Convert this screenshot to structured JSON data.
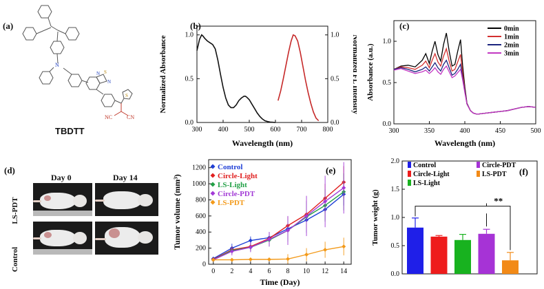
{
  "panels": {
    "a": {
      "label": "(a)",
      "compound": "TBDTT"
    },
    "b": {
      "label": "(b)"
    },
    "c": {
      "label": "(c)"
    },
    "d": {
      "label": "(d)",
      "day0": "Day 0",
      "day14": "Day 14",
      "row1": "LS-PDT",
      "row2": "Control"
    },
    "e": {
      "label": "(e)"
    },
    "f": {
      "label": "(f)",
      "significance": "**"
    }
  },
  "structure": {
    "atoms": [
      "N",
      "N",
      "S",
      "N",
      "S",
      "NC",
      "CN"
    ],
    "accent": "#c0392b"
  },
  "chart_data": [
    {
      "id": "b",
      "type": "line",
      "xlabel": "Wavelength (nm)",
      "ylabel": "Normalized Absorbance",
      "ylabel_right": "Normalized FL Intensity",
      "xlim": [
        300,
        800
      ],
      "ylim": [
        0,
        1.1
      ],
      "xticks": [
        "300",
        "400",
        "500",
        "600",
        "700",
        "800"
      ],
      "yticks": [
        "0.0",
        "0.5",
        "1.0"
      ],
      "yticks_right": [
        "0.0",
        "0.5",
        "1.0"
      ],
      "series": [
        {
          "color": "#111111",
          "x": [
            300,
            310,
            318,
            322,
            330,
            340,
            350,
            360,
            370,
            380,
            390,
            400,
            410,
            420,
            430,
            440,
            450,
            460,
            470,
            480,
            485,
            490,
            500,
            510,
            520,
            530,
            540,
            550,
            560,
            570,
            580,
            590,
            600
          ],
          "y": [
            0.82,
            0.95,
            1.0,
            0.99,
            0.96,
            0.93,
            0.91,
            0.89,
            0.84,
            0.71,
            0.55,
            0.4,
            0.28,
            0.2,
            0.17,
            0.17,
            0.2,
            0.25,
            0.28,
            0.3,
            0.3,
            0.29,
            0.26,
            0.21,
            0.16,
            0.11,
            0.07,
            0.04,
            0.02,
            0.01,
            0.005,
            0.002,
            0.0
          ]
        },
        {
          "color": "#c62828",
          "x": [
            610,
            620,
            630,
            640,
            650,
            660,
            668,
            675,
            685,
            695,
            705,
            715,
            725,
            735,
            745,
            755,
            765
          ],
          "y": [
            0.25,
            0.36,
            0.5,
            0.65,
            0.8,
            0.93,
            1.0,
            0.99,
            0.93,
            0.8,
            0.64,
            0.48,
            0.34,
            0.22,
            0.12,
            0.05,
            0.02
          ]
        }
      ]
    },
    {
      "id": "c",
      "type": "line",
      "xlabel": "Wavelength (nm)",
      "ylabel": "Absorbance (a.u.)",
      "xlim": [
        300,
        500
      ],
      "ylim": [
        0,
        1.25
      ],
      "xticks": [
        "300",
        "350",
        "400",
        "450",
        "500"
      ],
      "yticks": [
        "0.0",
        "0.5",
        "1.0"
      ],
      "x": [
        300,
        310,
        320,
        330,
        340,
        345,
        350,
        354,
        358,
        362,
        366,
        370,
        374,
        378,
        382,
        386,
        390,
        394,
        397,
        400,
        403,
        408,
        412,
        416,
        420,
        430,
        440,
        450,
        460,
        470,
        480,
        490,
        500
      ],
      "series": [
        {
          "name": "0min",
          "color": "#000000",
          "y": [
            0.66,
            0.7,
            0.71,
            0.69,
            0.77,
            0.85,
            0.73,
            0.88,
            1.0,
            0.84,
            0.76,
            0.96,
            1.1,
            0.88,
            0.7,
            0.72,
            0.88,
            1.02,
            0.7,
            0.45,
            0.25,
            0.16,
            0.13,
            0.12,
            0.12,
            0.13,
            0.14,
            0.15,
            0.16,
            0.18,
            0.2,
            0.21,
            0.2
          ]
        },
        {
          "name": "1min",
          "color": "#d32f2f",
          "y": [
            0.66,
            0.69,
            0.68,
            0.66,
            0.71,
            0.76,
            0.68,
            0.77,
            0.85,
            0.75,
            0.7,
            0.82,
            0.91,
            0.76,
            0.64,
            0.66,
            0.75,
            0.84,
            0.62,
            0.42,
            0.24,
            0.16,
            0.13,
            0.12,
            0.12,
            0.13,
            0.14,
            0.15,
            0.16,
            0.18,
            0.2,
            0.21,
            0.2
          ]
        },
        {
          "name": "2min",
          "color": "#1a237e",
          "y": [
            0.66,
            0.68,
            0.66,
            0.63,
            0.66,
            0.69,
            0.64,
            0.69,
            0.74,
            0.68,
            0.64,
            0.72,
            0.77,
            0.68,
            0.59,
            0.61,
            0.66,
            0.72,
            0.56,
            0.4,
            0.24,
            0.16,
            0.13,
            0.12,
            0.12,
            0.13,
            0.14,
            0.15,
            0.16,
            0.18,
            0.2,
            0.21,
            0.2
          ]
        },
        {
          "name": "3min",
          "color": "#c237c2",
          "y": [
            0.65,
            0.67,
            0.64,
            0.61,
            0.63,
            0.65,
            0.61,
            0.64,
            0.68,
            0.63,
            0.6,
            0.66,
            0.7,
            0.63,
            0.56,
            0.58,
            0.62,
            0.66,
            0.53,
            0.38,
            0.24,
            0.16,
            0.13,
            0.12,
            0.12,
            0.13,
            0.14,
            0.15,
            0.16,
            0.18,
            0.2,
            0.21,
            0.2
          ]
        }
      ]
    },
    {
      "id": "e",
      "type": "line",
      "xlabel": "Time (Day)",
      "ylabel": "Tumor volume (mm³)",
      "xlim": [
        -0.5,
        14.8
      ],
      "ylim": [
        0,
        1300
      ],
      "xticks": [
        "0",
        "2",
        "4",
        "6",
        "8",
        "10",
        "12",
        "14"
      ],
      "yticks": [
        "0",
        "200",
        "400",
        "600",
        "800",
        "1000",
        "1200"
      ],
      "x": [
        0,
        2,
        4,
        6,
        8,
        10,
        12,
        14
      ],
      "series": [
        {
          "name": "Control",
          "color": "#1f3fd6",
          "marker": "diamond",
          "y": [
            70,
            200,
            295,
            330,
            440,
            550,
            680,
            870
          ],
          "err": [
            20,
            55,
            50,
            70,
            120,
            160,
            130,
            140
          ]
        },
        {
          "name": "Circle-Light",
          "color": "#e02020",
          "marker": "diamond",
          "y": [
            60,
            180,
            220,
            320,
            480,
            620,
            820,
            1020
          ],
          "err": [
            15,
            40,
            45,
            70,
            110,
            170,
            180,
            200
          ]
        },
        {
          "name": "LS-Light",
          "color": "#22a046",
          "marker": "diamond",
          "y": [
            55,
            170,
            210,
            300,
            420,
            590,
            730,
            900
          ],
          "err": [
            15,
            40,
            50,
            80,
            140,
            190,
            200,
            230
          ]
        },
        {
          "name": "Circle-PDT",
          "color": "#a23ad6",
          "marker": "diamond",
          "y": [
            55,
            160,
            210,
            310,
            420,
            600,
            780,
            950
          ],
          "err": [
            15,
            50,
            60,
            90,
            180,
            250,
            320,
            320
          ]
        },
        {
          "name": "LS-PDT",
          "color": "#f39a1a",
          "marker": "diamond",
          "y": [
            55,
            55,
            60,
            60,
            65,
            120,
            180,
            220
          ],
          "err": [
            10,
            15,
            15,
            15,
            60,
            80,
            100,
            110
          ]
        }
      ]
    },
    {
      "id": "f",
      "type": "bar",
      "ylabel": "Tumor weight (g)",
      "ylim": [
        0,
        2.0
      ],
      "yticks": [
        "0.0",
        "0.5",
        "1.0",
        "1.5",
        "2.0"
      ],
      "series": [
        {
          "name": "Control",
          "color": "#1f1fe8",
          "value": 0.82,
          "err": 0.17
        },
        {
          "name": "Circle-Light",
          "color": "#ee1c1c",
          "value": 0.66,
          "err": 0.02
        },
        {
          "name": "LS-Light",
          "color": "#18b21f",
          "value": 0.6,
          "err": 0.1
        },
        {
          "name": "Circle-PDT",
          "color": "#a633d6",
          "value": 0.71,
          "err": 0.08
        },
        {
          "name": "LS-PDT",
          "color": "#f28a17",
          "value": 0.24,
          "err": 0.14
        }
      ]
    }
  ]
}
